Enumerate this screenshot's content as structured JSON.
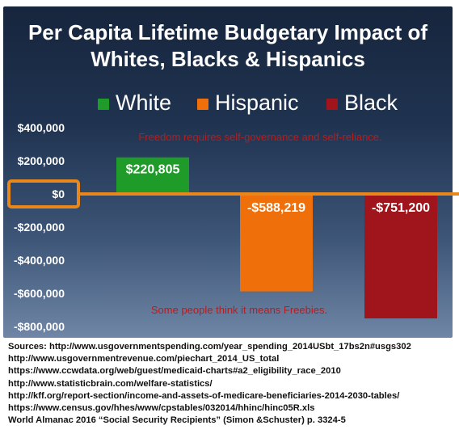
{
  "chart_data": {
    "type": "bar",
    "title": [
      "Per Capita Lifetime Budgetary Impact of",
      "Whites, Blacks & Hispanics"
    ],
    "categories": [
      "White",
      "Hispanic",
      "Black"
    ],
    "values": [
      220805,
      -588219,
      -751200
    ],
    "data_labels": [
      "$220,805",
      "-$588,219",
      "-$751,200"
    ],
    "colors": [
      "#1f9b2a",
      "#ef6f0b",
      "#a0151c"
    ],
    "ylim": [
      -800000,
      400000
    ],
    "yticks": [
      400000,
      200000,
      0,
      -200000,
      -400000,
      -600000,
      -800000
    ],
    "ytick_labels": [
      "$400,000",
      "$200,000",
      "$0",
      "-$200,000",
      "-$400,000",
      "-$600,000",
      "-$800,000"
    ],
    "legend": [
      "White",
      "Hispanic",
      "Black"
    ],
    "legend_position": "top",
    "zero_line_color": "#e8871c",
    "grid": false,
    "annotations": [
      "Freedom requires self-governance and self-reliance.",
      "Some people think it means Freebies."
    ]
  },
  "sources": [
    "Sources: http://www.usgovernmentspending.com/year_spending_2014USbt_17bs2n#usgs302",
    "http://www.usgovernmentrevenue.com/piechart_2014_US_total",
    "https://www.ccwdata.org/web/guest/medicaid-charts#a2_eligibility_race_2010",
    "http://www.statisticbrain.com/welfare-statistics/",
    "http://kff.org/report-section/income-and-assets-of-medicare-beneficiaries-2014-2030-tables/",
    "https://www.census.gov/hhes/www/cpstables/032014/hhinc/hinc05R.xls",
    "World Almanac 2016 “Social Security Recipients” (Simon &Schuster) p. 3324-5"
  ]
}
